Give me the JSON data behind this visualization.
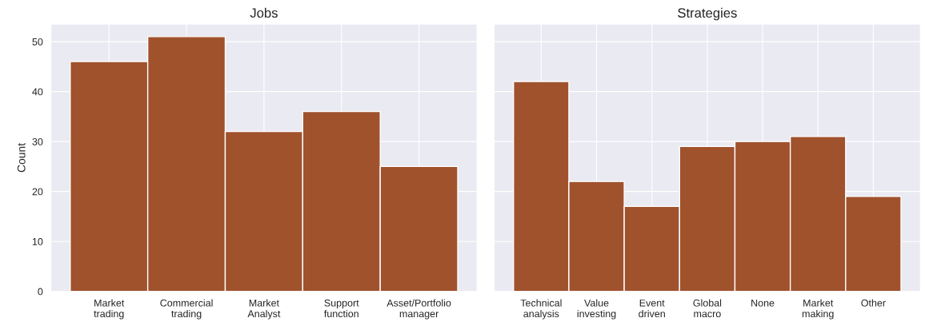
{
  "chart_data": [
    {
      "type": "bar",
      "title": "Jobs",
      "ylabel": "Count",
      "categories": [
        "Market\ntrading",
        "Commercial\ntrading",
        "Market\nAnalyst",
        "Support\nfunction",
        "Asset/Portfolio\nmanager"
      ],
      "values": [
        46,
        51,
        32,
        36,
        25
      ],
      "color": "#a0522d",
      "ylim": [
        0,
        53.5
      ],
      "yticks": [
        0,
        10,
        20,
        30,
        40,
        50
      ],
      "grid": true
    },
    {
      "type": "bar",
      "title": "Strategies",
      "categories": [
        "Technical\nanalysis",
        "Value\ninvesting",
        "Event\ndriven",
        "Global\nmacro",
        "None",
        "Market\nmaking",
        "Other"
      ],
      "values": [
        42,
        22,
        17,
        29,
        30,
        31,
        19
      ],
      "color": "#a0522d",
      "ylim": [
        0,
        53.5
      ],
      "yticks": [
        0,
        10,
        20,
        30,
        40,
        50
      ],
      "grid": true,
      "tick_labels": "x"
    }
  ]
}
